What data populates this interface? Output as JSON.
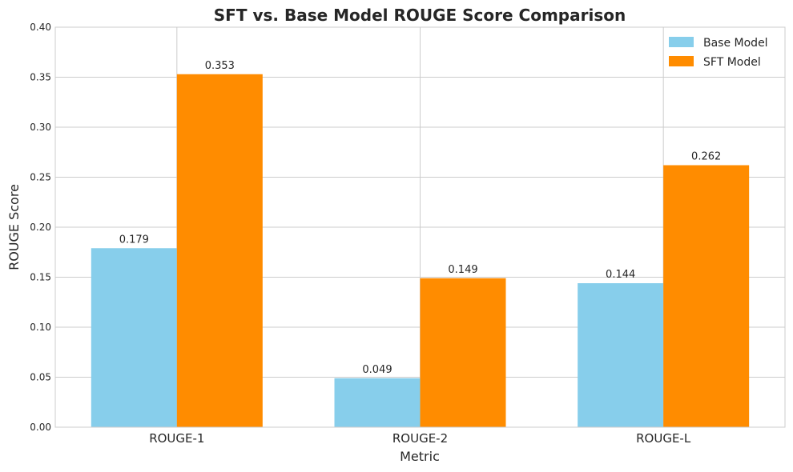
{
  "chart_data": {
    "type": "bar",
    "title": "SFT vs. Base Model ROUGE Score Comparison",
    "xlabel": "Metric",
    "ylabel": "ROUGE Score",
    "categories": [
      "ROUGE-1",
      "ROUGE-2",
      "ROUGE-L"
    ],
    "ylim": [
      0,
      0.4
    ],
    "yticks": [
      "0.00",
      "0.05",
      "0.10",
      "0.15",
      "0.20",
      "0.25",
      "0.30",
      "0.35",
      "0.40"
    ],
    "grid": true,
    "legend_position": "top-right",
    "series": [
      {
        "name": "Base Model",
        "color": "#87CEEB",
        "values": [
          0.179,
          0.049,
          0.144
        ],
        "labels": [
          "0.179",
          "0.049",
          "0.144"
        ]
      },
      {
        "name": "SFT Model",
        "color": "#FF8C00",
        "values": [
          0.353,
          0.149,
          0.262
        ],
        "labels": [
          "0.353",
          "0.149",
          "0.262"
        ]
      }
    ]
  }
}
